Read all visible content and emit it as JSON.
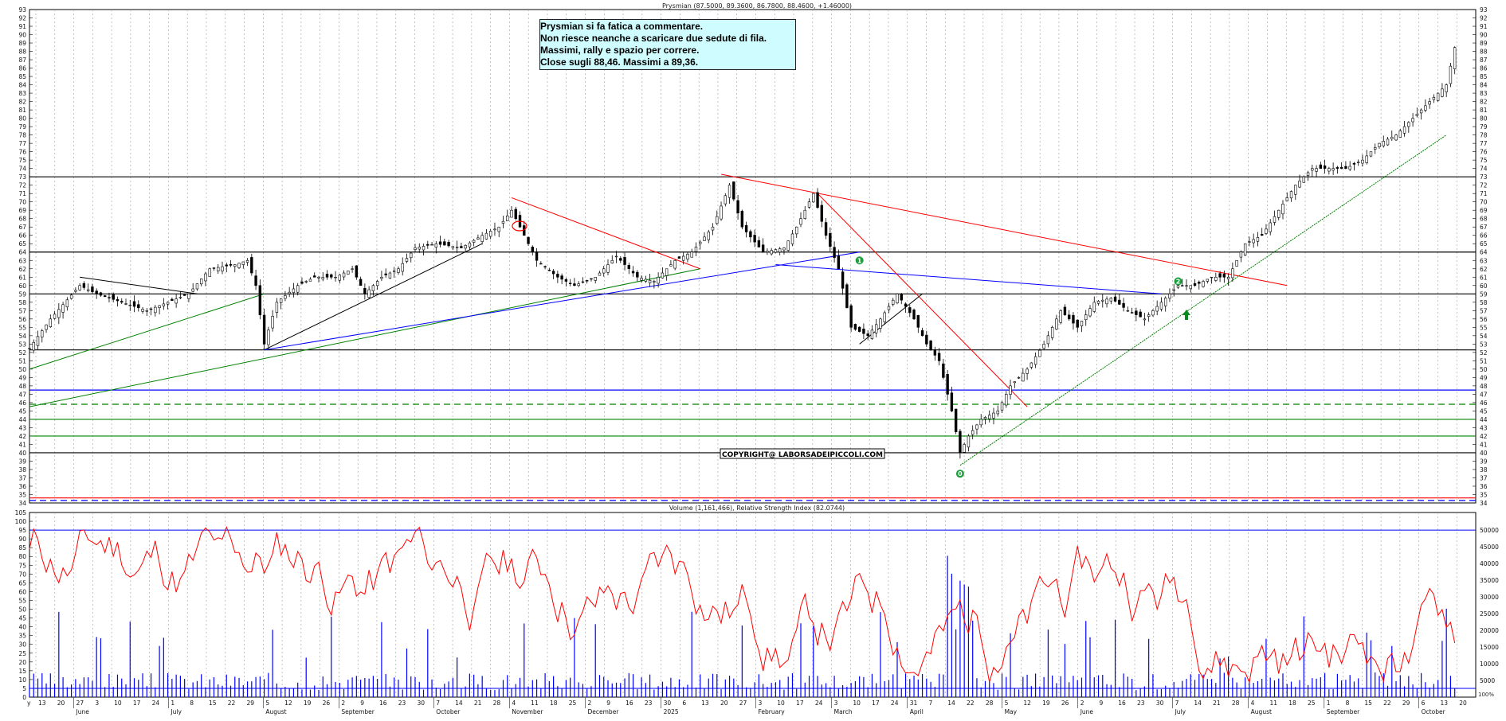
{
  "chart_data": [
    {
      "type": "candlestick",
      "title": "Prysmian (87.5000, 89.3600, 86.7800, 88.4600, +1.46000)",
      "ylim": [
        34,
        93
      ],
      "y_ticks": [
        34,
        35,
        36,
        37,
        38,
        39,
        40,
        41,
        42,
        43,
        44,
        45,
        46,
        47,
        48,
        49,
        50,
        51,
        52,
        53,
        54,
        55,
        56,
        57,
        58,
        59,
        60,
        61,
        62,
        63,
        64,
        65,
        66,
        67,
        68,
        69,
        70,
        71,
        72,
        73,
        74,
        75,
        76,
        77,
        78,
        79,
        80,
        81,
        82,
        83,
        84,
        85,
        86,
        87,
        88,
        89,
        90,
        91,
        92,
        93
      ],
      "grid": true,
      "close_points": [
        {
          "x": 0,
          "y": 52.5
        },
        {
          "x": 5,
          "y": 56
        },
        {
          "x": 12,
          "y": 60
        },
        {
          "x": 16,
          "y": 59
        },
        {
          "x": 22,
          "y": 58
        },
        {
          "x": 28,
          "y": 57
        },
        {
          "x": 33,
          "y": 58
        },
        {
          "x": 38,
          "y": 59
        },
        {
          "x": 43,
          "y": 62
        },
        {
          "x": 49,
          "y": 62.5
        },
        {
          "x": 52,
          "y": 63
        },
        {
          "x": 54,
          "y": 60
        },
        {
          "x": 56,
          "y": 53
        },
        {
          "x": 59,
          "y": 58
        },
        {
          "x": 64,
          "y": 60
        },
        {
          "x": 68,
          "y": 61
        },
        {
          "x": 73,
          "y": 61
        },
        {
          "x": 77,
          "y": 62
        },
        {
          "x": 80,
          "y": 59
        },
        {
          "x": 84,
          "y": 61
        },
        {
          "x": 88,
          "y": 62
        },
        {
          "x": 92,
          "y": 64.5
        },
        {
          "x": 97,
          "y": 65
        },
        {
          "x": 103,
          "y": 64.5
        },
        {
          "x": 108,
          "y": 66
        },
        {
          "x": 112,
          "y": 67
        },
        {
          "x": 115,
          "y": 69
        },
        {
          "x": 118,
          "y": 66
        },
        {
          "x": 121,
          "y": 63
        },
        {
          "x": 126,
          "y": 61
        },
        {
          "x": 130,
          "y": 60
        },
        {
          "x": 135,
          "y": 61
        },
        {
          "x": 140,
          "y": 63.5
        },
        {
          "x": 145,
          "y": 61
        },
        {
          "x": 149,
          "y": 60.5
        },
        {
          "x": 154,
          "y": 63
        },
        {
          "x": 158,
          "y": 64
        },
        {
          "x": 163,
          "y": 67
        },
        {
          "x": 167,
          "y": 72
        },
        {
          "x": 170,
          "y": 67
        },
        {
          "x": 175,
          "y": 64
        },
        {
          "x": 180,
          "y": 64.5
        },
        {
          "x": 183,
          "y": 67
        },
        {
          "x": 187,
          "y": 71
        },
        {
          "x": 190,
          "y": 66
        },
        {
          "x": 193,
          "y": 62
        },
        {
          "x": 196,
          "y": 55
        },
        {
          "x": 200,
          "y": 54
        },
        {
          "x": 203,
          "y": 56
        },
        {
          "x": 207,
          "y": 59
        },
        {
          "x": 211,
          "y": 56
        },
        {
          "x": 214,
          "y": 53
        },
        {
          "x": 217,
          "y": 51
        },
        {
          "x": 220,
          "y": 45
        },
        {
          "x": 222,
          "y": 40
        },
        {
          "x": 224,
          "y": 42
        },
        {
          "x": 227,
          "y": 44
        },
        {
          "x": 231,
          "y": 45
        },
        {
          "x": 234,
          "y": 48
        },
        {
          "x": 238,
          "y": 50
        },
        {
          "x": 242,
          "y": 53
        },
        {
          "x": 246,
          "y": 57
        },
        {
          "x": 250,
          "y": 55
        },
        {
          "x": 254,
          "y": 58
        },
        {
          "x": 258,
          "y": 58.5
        },
        {
          "x": 262,
          "y": 57
        },
        {
          "x": 266,
          "y": 56
        },
        {
          "x": 270,
          "y": 58
        },
        {
          "x": 274,
          "y": 60
        },
        {
          "x": 278,
          "y": 60
        },
        {
          "x": 282,
          "y": 61
        },
        {
          "x": 286,
          "y": 61
        },
        {
          "x": 290,
          "y": 65
        },
        {
          "x": 294,
          "y": 66
        },
        {
          "x": 298,
          "y": 69
        },
        {
          "x": 302,
          "y": 72
        },
        {
          "x": 306,
          "y": 74
        },
        {
          "x": 310,
          "y": 74
        },
        {
          "x": 314,
          "y": 74
        },
        {
          "x": 318,
          "y": 75
        },
        {
          "x": 322,
          "y": 77
        },
        {
          "x": 326,
          "y": 78
        },
        {
          "x": 330,
          "y": 80
        },
        {
          "x": 334,
          "y": 82
        },
        {
          "x": 338,
          "y": 84
        },
        {
          "x": 340,
          "y": 88.46
        }
      ],
      "horizontal_levels": [
        {
          "y": 73,
          "color": "#000000"
        },
        {
          "y": 64,
          "color": "#000000"
        },
        {
          "y": 59,
          "color": "#000000"
        },
        {
          "y": 52.3,
          "color": "#000000"
        },
        {
          "y": 47.5,
          "color": "#0000ff"
        },
        {
          "y": 45.8,
          "color": "#008000",
          "dashed": true
        },
        {
          "y": 44,
          "color": "#008000"
        },
        {
          "y": 42,
          "color": "#008000"
        },
        {
          "y": 40,
          "color": "#000000"
        },
        {
          "y": 34.6,
          "color": "#ff0000"
        },
        {
          "y": 34.3,
          "color": "#0000ff",
          "dashed": true
        }
      ],
      "trendlines": [
        {
          "x1": 0,
          "y1": 50,
          "x2": 56,
          "y2": 59,
          "color": "#008000"
        },
        {
          "x1": 0,
          "y1": 45.5,
          "x2": 160,
          "y2": 62,
          "color": "#008000"
        },
        {
          "x1": 12,
          "y1": 61,
          "x2": 40,
          "y2": 59,
          "color": "#000000"
        },
        {
          "x1": 56,
          "y1": 52.3,
          "x2": 108,
          "y2": 65,
          "color": "#000000"
        },
        {
          "x1": 56,
          "y1": 52.3,
          "x2": 198,
          "y2": 64,
          "color": "#0000ff"
        },
        {
          "x1": 178,
          "y1": 62.5,
          "x2": 270,
          "y2": 59,
          "color": "#0000ff"
        },
        {
          "x1": 115,
          "y1": 70.5,
          "x2": 160,
          "y2": 62,
          "color": "#ff0000"
        },
        {
          "x1": 165,
          "y1": 73.3,
          "x2": 300,
          "y2": 60,
          "color": "#ff0000"
        },
        {
          "x1": 188,
          "y1": 71,
          "x2": 238,
          "y2": 45.5,
          "color": "#ff0000"
        },
        {
          "x1": 222,
          "y1": 38.5,
          "x2": 338,
          "y2": 78,
          "color": "#008000",
          "dashed": true
        },
        {
          "x1": 198,
          "y1": 53,
          "x2": 213,
          "y2": 59,
          "color": "#000000"
        }
      ],
      "markers": [
        {
          "label": "1",
          "x": 198,
          "y": 63
        },
        {
          "label": "2",
          "x": 274,
          "y": 60.5
        },
        {
          "label": "0",
          "x": 222,
          "y": 37.5
        }
      ],
      "annotation_lines": [
        "Prysmian si fa fatica a commentare.",
        "Non riesce neanche a scaricare due sedute di fila.",
        "Massimi, rally e spazio per correre.",
        "Close sugli 88,46. Massimi a 89,36."
      ],
      "watermark": "COPYRIGHT@ LABORSADEIPICCOLI.COM"
    },
    {
      "type": "line",
      "title": "Volume (1,161,466), Relative Strength Index (82.0744)",
      "ylim": [
        0,
        105
      ],
      "y_ticks": [
        0,
        5,
        10,
        15,
        20,
        25,
        30,
        35,
        40,
        45,
        50,
        55,
        60,
        65,
        70,
        75,
        80,
        85,
        90,
        95,
        100,
        105
      ],
      "right_ticks": [
        "5000",
        "10000",
        "15000",
        "20000",
        "25000",
        "30000",
        "35000",
        "40000",
        "45000",
        "50000"
      ],
      "rsi_levels": [
        95,
        5
      ],
      "rsi_last": 82.0744,
      "volume_last": 1161466
    }
  ],
  "x_axis": {
    "day_labels": [
      "13",
      "20",
      "27",
      "3",
      "10",
      "17",
      "24",
      "1",
      "8",
      "15",
      "22",
      "29",
      "5",
      "12",
      "19",
      "26",
      "2",
      "9",
      "16",
      "23",
      "30",
      "7",
      "14",
      "21",
      "28",
      "4",
      "11",
      "18",
      "25",
      "2",
      "9",
      "16",
      "23",
      "30",
      "6",
      "13",
      "20",
      "27",
      "3",
      "10",
      "17",
      "24",
      "3",
      "10",
      "17",
      "24",
      "31",
      "7",
      "14",
      "22",
      "28",
      "5",
      "12",
      "19",
      "26",
      "2",
      "9",
      "16",
      "23",
      "30",
      "7",
      "14",
      "21",
      "28",
      "4",
      "11",
      "18",
      "25",
      "1",
      "8",
      "15",
      "22",
      "29",
      "6",
      "13",
      "20"
    ],
    "month_labels": [
      "June",
      "July",
      "August",
      "September",
      "October",
      "November",
      "December",
      "2025",
      "February",
      "March",
      "April",
      "May",
      "June",
      "July",
      "August",
      "September",
      "October"
    ],
    "first_label": "y"
  },
  "price_axis_corner": "100%"
}
